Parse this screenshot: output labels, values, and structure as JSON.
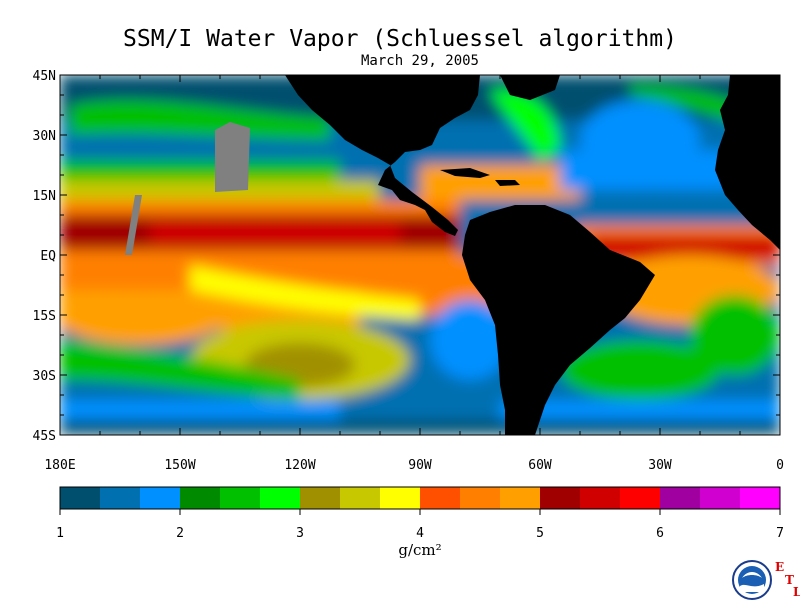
{
  "title": "SSM/I Water Vapor (Schluessel algorithm)",
  "date": "March 29, 2005",
  "map": {
    "lat_labels": [
      "45N",
      "30N",
      "15N",
      "EQ",
      "15S",
      "30S",
      "45S"
    ],
    "lat_values": [
      45,
      30,
      15,
      0,
      -15,
      -30,
      -45
    ],
    "lon_labels": [
      "180E",
      "150W",
      "120W",
      "90W",
      "60W",
      "30W",
      "0"
    ],
    "lon_values": [
      -180,
      -150,
      -120,
      -90,
      -60,
      -30,
      0
    ],
    "lon_range": [
      -180,
      0
    ],
    "lat_range": [
      -45,
      45
    ],
    "land_color": "#000000",
    "missing_color": "#808080"
  },
  "colorbar": {
    "unit": "g/cm²",
    "tick_labels": [
      "1",
      "2",
      "3",
      "4",
      "5",
      "6",
      "7"
    ],
    "range": [
      1,
      7
    ],
    "colors": [
      "#004f6e",
      "#0070b0",
      "#0090ff",
      "#008a00",
      "#00c000",
      "#00ff00",
      "#a09000",
      "#c8c800",
      "#ffff00",
      "#ff5000",
      "#ff8000",
      "#ffa000",
      "#a00000",
      "#d00000",
      "#ff0000",
      "#a000a0",
      "#d000d0",
      "#ff00ff"
    ]
  },
  "logo": {
    "text": "NOAA",
    "etl_letters": [
      "E",
      "T",
      "L"
    ]
  }
}
